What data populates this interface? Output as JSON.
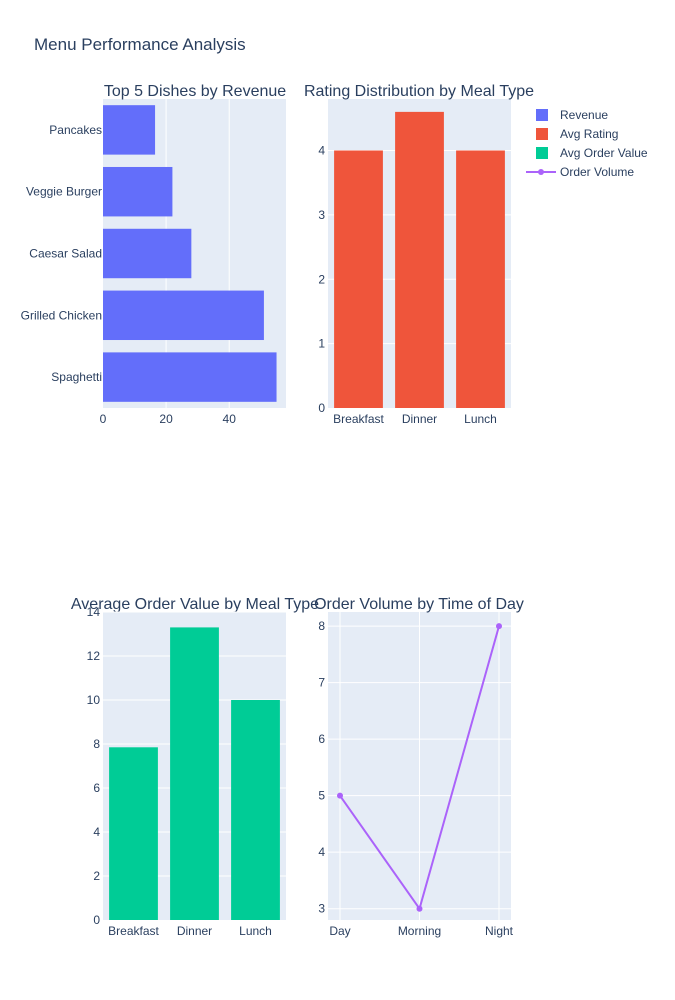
{
  "figure": {
    "title": "Menu Performance Analysis"
  },
  "colors": {
    "plot_bg": "#e5ecf6",
    "grid": "#ffffff",
    "text": "#2a3f5f",
    "revenue": "#636efa",
    "rating": "#ef553b",
    "order_value": "#00cc96",
    "order_volume": "#ab63fa"
  },
  "legend": {
    "placement": "top-right",
    "items": [
      {
        "label": "Revenue",
        "kind": "box",
        "color": "#636efa"
      },
      {
        "label": "Avg Rating",
        "kind": "box",
        "color": "#ef553b"
      },
      {
        "label": "Avg Order Value",
        "kind": "box",
        "color": "#00cc96"
      },
      {
        "label": "Order Volume",
        "kind": "line",
        "color": "#ab63fa"
      }
    ]
  },
  "chart_data": [
    {
      "type": "bar",
      "orientation": "horizontal",
      "title": "Top 5 Dishes by Revenue",
      "categories": [
        "Spaghetti",
        "Grilled Chicken",
        "Caesar Salad",
        "Veggie Burger",
        "Pancakes"
      ],
      "series": [
        {
          "name": "Revenue",
          "values": [
            55,
            51,
            28,
            22,
            16.5
          ]
        }
      ],
      "xlim": [
        0,
        58
      ],
      "xticks": [
        0,
        20,
        40
      ],
      "grid": true
    },
    {
      "type": "bar",
      "title": "Rating Distribution by Meal Type",
      "categories": [
        "Breakfast",
        "Dinner",
        "Lunch"
      ],
      "series": [
        {
          "name": "Avg Rating",
          "values": [
            4,
            4.6,
            4
          ]
        }
      ],
      "ylim": [
        0,
        4.8
      ],
      "yticks": [
        0,
        1,
        2,
        3,
        4
      ],
      "grid": true
    },
    {
      "type": "bar",
      "title": "Average Order Value by Meal Type",
      "categories": [
        "Breakfast",
        "Dinner",
        "Lunch"
      ],
      "series": [
        {
          "name": "Avg Order Value",
          "values": [
            7.85,
            13.3,
            10
          ]
        }
      ],
      "ylim": [
        0,
        14
      ],
      "yticks": [
        0,
        2,
        4,
        6,
        8,
        10,
        12,
        14
      ],
      "grid": true
    },
    {
      "type": "line",
      "title": "Order Volume by Time of Day",
      "categories": [
        "Day",
        "Morning",
        "Night"
      ],
      "series": [
        {
          "name": "Order Volume",
          "values": [
            5,
            3,
            8
          ]
        }
      ],
      "ylim": [
        2.8,
        8.25
      ],
      "yticks": [
        3,
        4,
        5,
        6,
        7,
        8
      ],
      "grid": true
    }
  ]
}
